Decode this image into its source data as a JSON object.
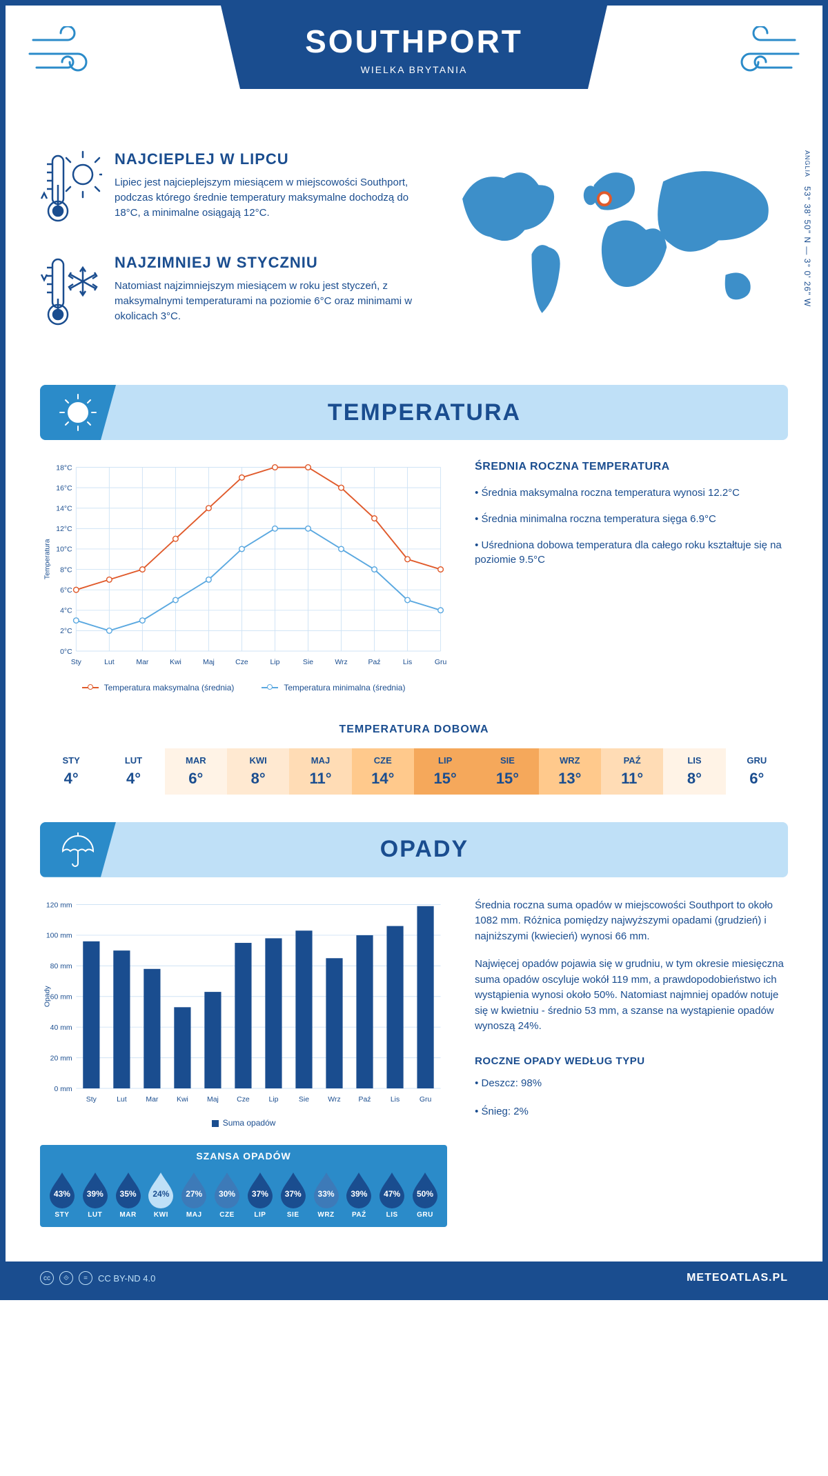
{
  "header": {
    "city": "SOUTHPORT",
    "country": "WIELKA BRYTANIA"
  },
  "coords": {
    "lat": "53° 38' 50\" N",
    "lon": "3° 0' 26\" W",
    "region": "ANGLIA"
  },
  "facts": {
    "hot": {
      "title": "NAJCIEPLEJ W LIPCU",
      "text": "Lipiec jest najcieplejszym miesiącem w miejscowości Southport, podczas którego średnie temperatury maksymalne dochodzą do 18°C, a minimalne osiągają 12°C."
    },
    "cold": {
      "title": "NAJZIMNIEJ W STYCZNIU",
      "text": "Natomiast najzimniejszym miesiącem w roku jest styczeń, z maksymalnymi temperaturami na poziomie 6°C oraz minimami w okolicach 3°C."
    }
  },
  "temp_section": {
    "title": "TEMPERATURA",
    "chart": {
      "type": "line",
      "months": [
        "Sty",
        "Lut",
        "Mar",
        "Kwi",
        "Maj",
        "Cze",
        "Lip",
        "Sie",
        "Wrz",
        "Paź",
        "Lis",
        "Gru"
      ],
      "max_values": [
        6,
        7,
        8,
        11,
        14,
        17,
        18,
        18,
        16,
        13,
        9,
        8
      ],
      "min_values": [
        3,
        2,
        3,
        5,
        7,
        10,
        12,
        12,
        10,
        8,
        5,
        4
      ],
      "max_color": "#e05a2b",
      "min_color": "#5aa8e0",
      "grid_color": "#cfe3f5",
      "axis_color": "#1a4d8f",
      "ylim": [
        0,
        18
      ],
      "ytick_step": 2,
      "ylabel": "Temperatura",
      "line_width": 2,
      "marker_size": 4,
      "legend_max": "Temperatura maksymalna (średnia)",
      "legend_min": "Temperatura minimalna (średnia)"
    },
    "info": {
      "heading": "ŚREDNIA ROCZNA TEMPERATURA",
      "b1": "• Średnia maksymalna roczna temperatura wynosi 12.2°C",
      "b2": "• Średnia minimalna roczna temperatura sięga 6.9°C",
      "b3": "• Uśredniona dobowa temperatura dla całego roku kształtuje się na poziomie 9.5°C"
    },
    "daily": {
      "title": "TEMPERATURA DOBOWA",
      "months": [
        "STY",
        "LUT",
        "MAR",
        "KWI",
        "MAJ",
        "CZE",
        "LIP",
        "SIE",
        "WRZ",
        "PAŹ",
        "LIS",
        "GRU"
      ],
      "values": [
        "4°",
        "4°",
        "6°",
        "8°",
        "11°",
        "14°",
        "15°",
        "15°",
        "13°",
        "11°",
        "8°",
        "6°"
      ],
      "cell_colors": [
        "#ffffff",
        "#ffffff",
        "#fff3e6",
        "#ffe9d1",
        "#ffdcb5",
        "#ffc98c",
        "#f5a85b",
        "#f5a85b",
        "#ffc98c",
        "#ffdcb5",
        "#fff3e6",
        "#ffffff"
      ]
    }
  },
  "precip_section": {
    "title": "OPADY",
    "chart": {
      "type": "bar",
      "months": [
        "Sty",
        "Lut",
        "Mar",
        "Kwi",
        "Maj",
        "Cze",
        "Lip",
        "Sie",
        "Wrz",
        "Paź",
        "Lis",
        "Gru"
      ],
      "values": [
        96,
        90,
        78,
        53,
        63,
        95,
        98,
        103,
        85,
        100,
        106,
        119
      ],
      "bar_color": "#1a4d8f",
      "grid_color": "#cfe3f5",
      "ylim": [
        0,
        120
      ],
      "ytick_step": 20,
      "ylabel": "Opady",
      "legend": "Suma opadów",
      "bar_width": 0.55
    },
    "info": {
      "p1": "Średnia roczna suma opadów w miejscowości Southport to około 1082 mm. Różnica pomiędzy najwyższymi opadami (grudzień) i najniższymi (kwiecień) wynosi 66 mm.",
      "p2": "Najwięcej opadów pojawia się w grudniu, w tym okresie miesięczna suma opadów oscyluje wokół 119 mm, a prawdopodobieństwo ich wystąpienia wynosi około 50%. Natomiast najmniej opadów notuje się w kwietniu - średnio 53 mm, a szanse na wystąpienie opadów wynoszą 24%.",
      "type_heading": "ROCZNE OPADY WEDŁUG TYPU",
      "rain": "• Deszcz: 98%",
      "snow": "• Śnieg: 2%"
    },
    "chance": {
      "title": "SZANSA OPADÓW",
      "months": [
        "STY",
        "LUT",
        "MAR",
        "KWI",
        "MAJ",
        "CZE",
        "LIP",
        "SIE",
        "WRZ",
        "PAŹ",
        "LIS",
        "GRU"
      ],
      "values": [
        "43%",
        "39%",
        "35%",
        "24%",
        "27%",
        "30%",
        "37%",
        "37%",
        "33%",
        "39%",
        "47%",
        "50%"
      ],
      "drop_colors": [
        "#1a4d8f",
        "#1a4d8f",
        "#1a4d8f",
        "#bfe0f7",
        "#3d7ab8",
        "#3d7ab8",
        "#1a4d8f",
        "#1a4d8f",
        "#3d7ab8",
        "#1a4d8f",
        "#1a4d8f",
        "#1a4d8f"
      ]
    }
  },
  "footer": {
    "license": "CC BY-ND 4.0",
    "site": "METEOATLAS.PL"
  }
}
